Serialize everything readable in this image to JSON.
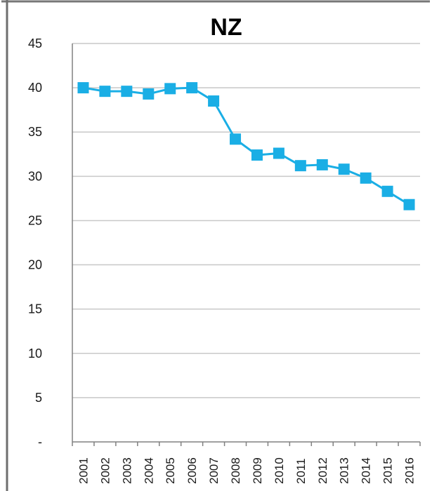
{
  "chart_data": {
    "type": "line",
    "title": "NZ",
    "xlabel": "",
    "ylabel": "",
    "categories": [
      "2001",
      "2002",
      "2003",
      "2004",
      "2005",
      "2006",
      "2007",
      "2008",
      "2009",
      "2010",
      "2011",
      "2012",
      "2013",
      "2014",
      "2015",
      "2016"
    ],
    "series": [
      {
        "values": [
          40.0,
          39.6,
          39.6,
          39.3,
          39.9,
          40.0,
          38.5,
          34.2,
          32.4,
          32.6,
          31.2,
          31.3,
          30.8,
          29.8,
          28.3,
          26.8
        ],
        "color": "#1aaee5",
        "marker": "square"
      }
    ],
    "ylim": [
      0,
      45
    ],
    "yticks": [
      0,
      5,
      10,
      15,
      20,
      25,
      30,
      35,
      40,
      45
    ],
    "ytick_labels": [
      "-",
      "5",
      "10",
      "15",
      "20",
      "25",
      "30",
      "35",
      "40",
      "45"
    ],
    "grid": true,
    "legend": "none",
    "colors": {
      "gridline": "#c8c8c8",
      "axis": "#808080",
      "frame": "#777777"
    }
  }
}
